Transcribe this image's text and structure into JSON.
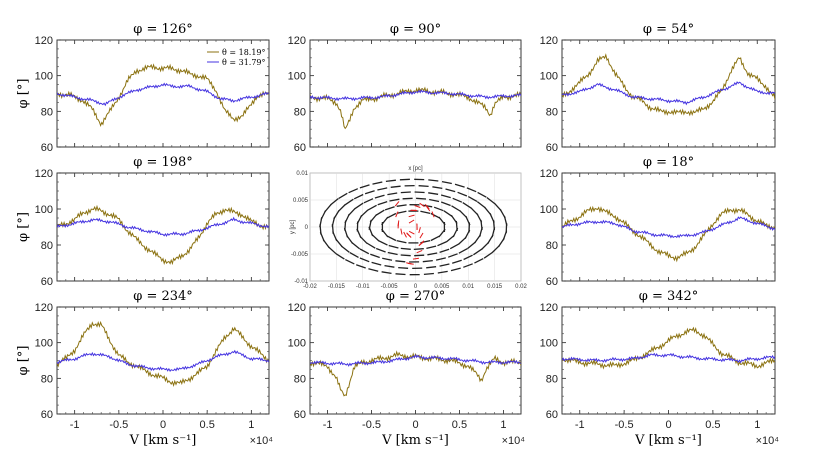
{
  "colors": {
    "olive": "#8b7211",
    "blue": "#4433e0",
    "arrow": "#222222",
    "arrow_red": "#e01a1a"
  },
  "chart_data": [
    {
      "id": "p126",
      "type": "line",
      "title": "φ = 126°",
      "xlim": [
        -12000,
        12000
      ],
      "ylim": [
        60,
        120
      ],
      "xticks": [
        "-1",
        "-0.5",
        "0",
        "0.5",
        "1"
      ],
      "yticks": [
        "60",
        "80",
        "100",
        "120"
      ],
      "ylabel": "φ [°]",
      "xlabel": "",
      "legend": [
        "θ = 18.19°",
        "θ = 31.79°"
      ],
      "series": [
        {
          "name": "θ = 18.19°",
          "x": [
            -12000,
            -10500,
            -9000,
            -8000,
            -7000,
            -6000,
            -5000,
            -4000,
            -3000,
            -2000,
            -1000,
            0,
            1000,
            2000,
            3000,
            4000,
            5000,
            6000,
            7000,
            8000,
            9000,
            10500,
            12000
          ],
          "y": [
            90,
            89,
            86,
            81,
            73,
            80,
            88,
            97,
            103,
            104,
            105,
            104,
            104,
            103,
            101,
            100,
            98,
            92,
            80,
            76,
            77,
            88,
            90
          ]
        },
        {
          "name": "θ = 31.79°",
          "x": [
            -12000,
            -10000,
            -8000,
            -6500,
            -5000,
            -3000,
            -1000,
            0,
            1000,
            3000,
            5000,
            6500,
            8000,
            10000,
            12000
          ],
          "y": [
            90,
            88,
            86,
            84,
            88,
            92,
            94,
            95,
            94,
            94,
            91,
            87,
            86,
            88,
            90
          ]
        }
      ]
    },
    {
      "id": "p90",
      "type": "line",
      "title": "φ = 90°",
      "xlim": [
        -12000,
        12000
      ],
      "ylim": [
        60,
        120
      ],
      "xticks": [
        "-1",
        "-0.5",
        "0",
        "0.5",
        "1"
      ],
      "yticks": [
        "60",
        "80",
        "100",
        "120"
      ],
      "ylabel": "",
      "xlabel": "",
      "series": [
        {
          "name": "θ = 18.19°",
          "x": [
            -12000,
            -10000,
            -9000,
            -8500,
            -8000,
            -7500,
            -7000,
            -6000,
            -4000,
            -2000,
            0,
            2000,
            4000,
            6000,
            7000,
            8000,
            8500,
            9000,
            10000,
            12000
          ],
          "y": [
            88,
            87,
            85,
            80,
            69,
            75,
            82,
            86,
            88,
            90,
            92,
            91,
            90,
            88,
            85,
            82,
            78,
            84,
            88,
            89
          ]
        },
        {
          "name": "θ = 31.79°",
          "x": [
            -12000,
            -8000,
            -4000,
            0,
            4000,
            8000,
            12000
          ],
          "y": [
            88,
            87,
            88,
            91,
            90,
            88,
            89
          ]
        }
      ]
    },
    {
      "id": "p54",
      "type": "line",
      "title": "φ = 54°",
      "xlim": [
        -12000,
        12000
      ],
      "ylim": [
        60,
        120
      ],
      "xticks": [
        "-1",
        "-0.5",
        "0",
        "0.5",
        "1"
      ],
      "yticks": [
        "60",
        "80",
        "100",
        "120"
      ],
      "ylabel": "",
      "xlabel": "",
      "series": [
        {
          "name": "θ = 18.19°",
          "x": [
            -12000,
            -11000,
            -10000,
            -9000,
            -8000,
            -7000,
            -6000,
            -5000,
            -4000,
            -3000,
            -2000,
            -1000,
            0,
            1000,
            2000,
            3000,
            4000,
            5000,
            6000,
            7000,
            8000,
            9000,
            10000,
            11000,
            12000
          ],
          "y": [
            88,
            92,
            96,
            101,
            108,
            111,
            101,
            94,
            88,
            86,
            82,
            80,
            80,
            79,
            80,
            79,
            82,
            85,
            92,
            102,
            110,
            101,
            98,
            94,
            87
          ]
        },
        {
          "name": "θ = 31.79°",
          "x": [
            -12000,
            -10000,
            -8000,
            -6000,
            -4000,
            -2000,
            0,
            2000,
            4000,
            6000,
            8000,
            10000,
            12000
          ],
          "y": [
            89,
            91,
            95,
            92,
            88,
            87,
            86,
            85,
            88,
            92,
            96,
            91,
            90
          ]
        }
      ]
    },
    {
      "id": "p198",
      "type": "line",
      "title": "φ = 198°",
      "xlim": [
        -12000,
        12000
      ],
      "ylim": [
        60,
        120
      ],
      "xticks": [
        "-1",
        "-0.5",
        "0",
        "0.5",
        "1"
      ],
      "yticks": [
        "60",
        "80",
        "100",
        "120"
      ],
      "ylabel": "φ [°]",
      "xlabel": "",
      "series": [
        {
          "name": "θ = 18.19°",
          "x": [
            -12000,
            -10000,
            -9000,
            -8000,
            -7000,
            -6000,
            -5000,
            -4000,
            -3000,
            -2000,
            -1000,
            0,
            1000,
            2000,
            3000,
            4000,
            5000,
            6000,
            7000,
            8000,
            9000,
            10000,
            11000,
            12000
          ],
          "y": [
            90,
            94,
            98,
            100,
            99,
            97,
            94,
            88,
            83,
            79,
            75,
            72,
            70,
            74,
            77,
            84,
            92,
            97,
            100,
            98,
            97,
            93,
            91,
            90
          ]
        },
        {
          "name": "θ = 31.79°",
          "x": [
            -12000,
            -10000,
            -8000,
            -6000,
            -4000,
            -2000,
            0,
            2000,
            4000,
            6000,
            8000,
            10000,
            12000
          ],
          "y": [
            90,
            92,
            94,
            93,
            90,
            88,
            86,
            86,
            88,
            91,
            94,
            92,
            90
          ]
        }
      ]
    },
    {
      "id": "inset",
      "type": "vector-field",
      "title": "",
      "xlabel": "x [pc]",
      "ylabel": "y [pc]",
      "xlim": [
        -0.02,
        0.02
      ],
      "ylim": [
        -0.01,
        0.01
      ],
      "xticks": [
        "-0.02",
        "-0.015",
        "-0.01",
        "-0.005",
        "0",
        "0.005",
        "0.01",
        "0.015",
        "0.02"
      ],
      "yticks": [
        "-0.01",
        "-0.005",
        "0",
        "0.005",
        "0.01"
      ]
    },
    {
      "id": "p18",
      "type": "line",
      "title": "φ = 18°",
      "xlim": [
        -12000,
        12000
      ],
      "ylim": [
        60,
        120
      ],
      "xticks": [
        "-1",
        "-0.5",
        "0",
        "0.5",
        "1"
      ],
      "yticks": [
        "60",
        "80",
        "100",
        "120"
      ],
      "ylabel": "",
      "xlabel": "",
      "series": [
        {
          "name": "θ = 18.19°",
          "x": [
            -12000,
            -10000,
            -9000,
            -8000,
            -7000,
            -6000,
            -5000,
            -4000,
            -3000,
            -2000,
            -1000,
            0,
            1000,
            2000,
            3000,
            4000,
            5000,
            6000,
            7000,
            8000,
            9000,
            10000,
            11000,
            12000
          ],
          "y": [
            90,
            96,
            99,
            101,
            98,
            96,
            92,
            88,
            84,
            80,
            76,
            74,
            73,
            75,
            79,
            85,
            92,
            97,
            100,
            99,
            97,
            93,
            91,
            90
          ]
        },
        {
          "name": "θ = 31.79°",
          "x": [
            -12000,
            -10000,
            -8000,
            -6000,
            -4000,
            -2000,
            0,
            2000,
            4000,
            6000,
            8000,
            10000,
            12000
          ],
          "y": [
            90,
            92,
            93,
            92,
            88,
            86,
            85,
            85,
            87,
            91,
            95,
            92,
            89
          ]
        }
      ]
    },
    {
      "id": "p234",
      "type": "line",
      "title": "φ = 234°",
      "xlim": [
        -12000,
        12000
      ],
      "ylim": [
        60,
        120
      ],
      "xticks": [
        "-1",
        "-0.5",
        "0",
        "0.5",
        "1"
      ],
      "yticks": [
        "60",
        "80",
        "100",
        "120"
      ],
      "ylabel": "φ [°]",
      "xlabel": "V [km s⁻¹]",
      "exponent": "×10⁴",
      "series": [
        {
          "name": "θ = 18.19°",
          "x": [
            -12000,
            -11000,
            -10000,
            -9000,
            -8000,
            -7000,
            -6000,
            -5000,
            -4000,
            -3000,
            -2000,
            -1000,
            0,
            1000,
            2000,
            3000,
            4000,
            5000,
            6000,
            7000,
            8000,
            9000,
            10000,
            11000,
            12000
          ],
          "y": [
            88,
            91,
            96,
            104,
            111,
            110,
            101,
            93,
            89,
            87,
            84,
            82,
            80,
            78,
            77,
            80,
            83,
            87,
            95,
            103,
            108,
            103,
            98,
            94,
            90
          ]
        },
        {
          "name": "θ = 31.79°",
          "x": [
            -12000,
            -10000,
            -8000,
            -6000,
            -4000,
            -2000,
            0,
            2000,
            4000,
            6000,
            8000,
            10000,
            12000
          ],
          "y": [
            89,
            91,
            94,
            92,
            88,
            86,
            85,
            85,
            88,
            92,
            95,
            91,
            90
          ]
        }
      ]
    },
    {
      "id": "p270",
      "type": "line",
      "title": "φ = 270°",
      "xlim": [
        -12000,
        12000
      ],
      "ylim": [
        60,
        120
      ],
      "xticks": [
        "-1",
        "-0.5",
        "0",
        "0.5",
        "1"
      ],
      "yticks": [
        "60",
        "80",
        "100",
        "120"
      ],
      "ylabel": "",
      "xlabel": "V [km s⁻¹]",
      "exponent": "×10⁴",
      "series": [
        {
          "name": "θ = 18.19°",
          "x": [
            -12000,
            -10000,
            -9000,
            -8500,
            -8000,
            -7500,
            -7000,
            -6000,
            -4000,
            -2000,
            0,
            2000,
            4000,
            6000,
            7000,
            7500,
            8000,
            9000,
            10000,
            12000
          ],
          "y": [
            89,
            87,
            80,
            73,
            70,
            78,
            86,
            89,
            91,
            93,
            92,
            91,
            90,
            87,
            82,
            79,
            85,
            91,
            89,
            89
          ]
        },
        {
          "name": "θ = 31.79°",
          "x": [
            -12000,
            -8000,
            -4000,
            0,
            4000,
            8000,
            12000
          ],
          "y": [
            89,
            88,
            89,
            92,
            91,
            89,
            89
          ]
        }
      ]
    },
    {
      "id": "p342",
      "type": "line",
      "title": "φ = 342°",
      "xlim": [
        -12000,
        12000
      ],
      "ylim": [
        60,
        120
      ],
      "xticks": [
        "-1",
        "-0.5",
        "0",
        "0.5",
        "1"
      ],
      "yticks": [
        "60",
        "80",
        "100",
        "120"
      ],
      "ylabel": "",
      "xlabel": "V [km s⁻¹]",
      "exponent": "×10⁴",
      "series": [
        {
          "name": "θ = 18.19°",
          "x": [
            -12000,
            -10000,
            -8000,
            -6000,
            -4000,
            -2000,
            -1000,
            0,
            1000,
            2000,
            3000,
            4000,
            5000,
            6000,
            8000,
            10000,
            12000
          ],
          "y": [
            91,
            89,
            88,
            87,
            90,
            95,
            98,
            101,
            104,
            106,
            107,
            104,
            99,
            94,
            89,
            87,
            90
          ]
        },
        {
          "name": "θ = 31.79°",
          "x": [
            -12000,
            -8000,
            -4000,
            -2000,
            0,
            4000,
            8000,
            12000
          ],
          "y": [
            91,
            90,
            91,
            93,
            93,
            91,
            90,
            92
          ]
        }
      ]
    }
  ]
}
